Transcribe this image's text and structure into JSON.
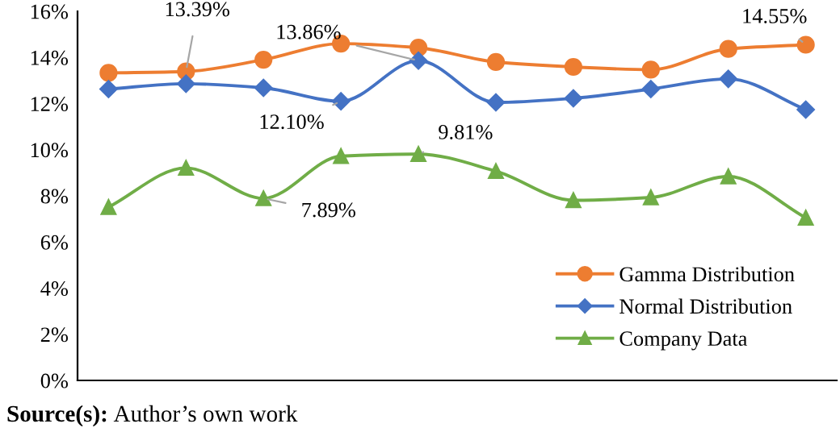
{
  "chart_data": {
    "type": "line",
    "categories": [
      null,
      null,
      null,
      null,
      null,
      null,
      null,
      null,
      null,
      null
    ],
    "series": [
      {
        "name": "Gamma Distribution",
        "color": "#ed7d31",
        "marker": "circle",
        "values": [
          13.33,
          13.39,
          13.9,
          14.6,
          14.42,
          13.8,
          13.59,
          13.47,
          14.37,
          14.55
        ]
      },
      {
        "name": "Normal Distribution",
        "color": "#4472c4",
        "marker": "diamond",
        "values": [
          12.63,
          12.86,
          12.68,
          12.1,
          13.86,
          12.05,
          12.23,
          12.63,
          13.07,
          11.74
        ]
      },
      {
        "name": "Company Data",
        "color": "#70ad47",
        "marker": "triangle",
        "values": [
          7.51,
          9.21,
          7.89,
          9.72,
          9.81,
          9.07,
          7.81,
          7.93,
          8.84,
          7.05
        ]
      }
    ],
    "ylim": [
      0,
      16
    ],
    "yticks": [
      {
        "value": 0,
        "label": "0%"
      },
      {
        "value": 2,
        "label": "2%"
      },
      {
        "value": 4,
        "label": "4%"
      },
      {
        "value": 6,
        "label": "6%"
      },
      {
        "value": 8,
        "label": "8%"
      },
      {
        "value": 10,
        "label": "10%"
      },
      {
        "value": 12,
        "label": "12%"
      },
      {
        "value": 14,
        "label": "14%"
      },
      {
        "value": 16,
        "label": "16%"
      }
    ],
    "grid": false,
    "legend": "bottom right",
    "line_style": "solid",
    "annotations": [
      "13.39%",
      "13.86%",
      "12.10%",
      "9.81%",
      "7.89%",
      "14.55%",
      "Source(s): Author’s own work"
    ]
  }
}
